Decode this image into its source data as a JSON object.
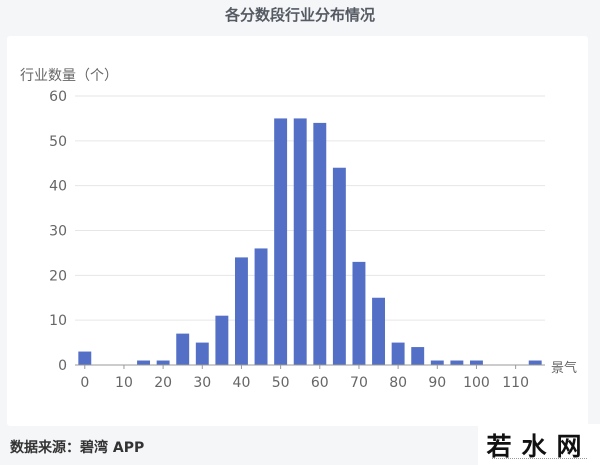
{
  "chart_data": {
    "type": "bar",
    "title": "各分数段行业分布情况",
    "ylabel": "行业数量（个）",
    "xlabel": "景气",
    "x": [
      0,
      5,
      10,
      15,
      20,
      25,
      30,
      35,
      40,
      45,
      50,
      55,
      60,
      65,
      70,
      75,
      80,
      85,
      90,
      95,
      100,
      105,
      110,
      115
    ],
    "values": [
      3,
      0,
      0,
      1,
      1,
      7,
      5,
      11,
      24,
      26,
      55,
      55,
      54,
      44,
      23,
      15,
      5,
      4,
      1,
      1,
      1,
      0,
      0,
      1
    ],
    "xticks": [
      "0",
      "10",
      "20",
      "30",
      "40",
      "50",
      "60",
      "70",
      "80",
      "90",
      "100",
      "110"
    ],
    "yticks": [
      "0",
      "10",
      "20",
      "30",
      "40",
      "50",
      "60"
    ],
    "ylim": [
      0,
      60
    ],
    "grid": true,
    "bar_color": "#5470c6"
  },
  "footer": {
    "source": "数据来源：碧湾 APP",
    "logo": "若水网"
  }
}
